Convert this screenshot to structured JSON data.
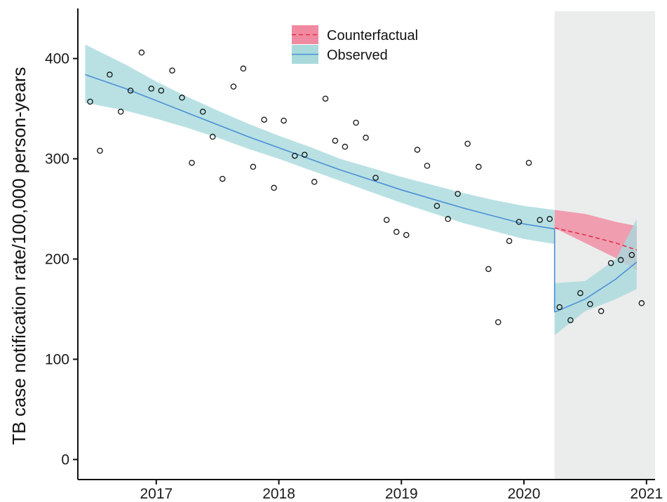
{
  "chart_data": {
    "type": "line",
    "title": "",
    "xlabel": "",
    "ylabel": "TB case notification rate/100,000 person-years",
    "xlim": [
      2016.36,
      2021.07
    ],
    "ylim": [
      -20,
      450
    ],
    "x_ticks": [
      2017,
      2018,
      2019,
      2020,
      2021
    ],
    "y_ticks": [
      0,
      100,
      200,
      300,
      400
    ],
    "grid": false,
    "legend": {
      "position": "top-center",
      "entries": [
        "Counterfactual",
        "Observed"
      ]
    },
    "shaded_period": {
      "start": 2020.25,
      "end": 2021.07,
      "color": "#ebecec"
    },
    "colors": {
      "observed_line": "#4a8fd6",
      "observed_band": "#a8dadc",
      "counterfactual_line": "#e0304f",
      "counterfactual_band": "#f08aa0",
      "points": "#111111"
    },
    "series": [
      {
        "name": "Observed",
        "kind": "fitted-line",
        "segments": [
          {
            "x": [
              2016.42,
              2016.75,
              2017.0,
              2017.25,
              2017.5,
              2017.75,
              2018.0,
              2018.25,
              2018.5,
              2018.75,
              2019.0,
              2019.25,
              2019.5,
              2019.75,
              2020.0,
              2020.25
            ],
            "y": [
              384,
              370,
              358,
              346,
              334,
              322,
              311,
              300,
              289,
              279,
              269,
              260,
              251,
              243,
              235,
              230
            ],
            "lower": [
              356,
              348,
              340,
              331,
              321,
              310,
              300,
              289,
              278,
              267,
              256,
              246,
              236,
              228,
              220,
              215
            ],
            "upper": [
              414,
              394,
              377,
              362,
              348,
              335,
              323,
              312,
              300,
              291,
              282,
              274,
              266,
              259,
              253,
              249
            ]
          },
          {
            "x": [
              2020.25,
              2020.5,
              2020.75,
              2020.92
            ],
            "y": [
              147,
              160,
              180,
              197
            ],
            "lower": [
              124,
              148,
              160,
              170
            ],
            "upper": [
              176,
              178,
              200,
              240
            ]
          }
        ],
        "connector": {
          "x": 2020.25,
          "y_from": 230,
          "y_to": 147
        }
      },
      {
        "name": "Counterfactual",
        "kind": "dashed-line",
        "x": [
          2020.25,
          2020.5,
          2020.75,
          2020.92
        ],
        "y": [
          231,
          224,
          216,
          209
        ],
        "lower": [
          231,
          216,
          201,
          189
        ],
        "upper": [
          249,
          245,
          237,
          233
        ]
      },
      {
        "name": "Observed data points",
        "kind": "scatter",
        "x": [
          2016.46,
          2016.54,
          2016.62,
          2016.71,
          2016.79,
          2016.88,
          2016.96,
          2017.04,
          2017.13,
          2017.21,
          2017.29,
          2017.38,
          2017.46,
          2017.54,
          2017.63,
          2017.71,
          2017.79,
          2017.88,
          2017.96,
          2018.04,
          2018.13,
          2018.21,
          2018.29,
          2018.38,
          2018.46,
          2018.54,
          2018.63,
          2018.71,
          2018.79,
          2018.88,
          2018.96,
          2019.04,
          2019.13,
          2019.21,
          2019.29,
          2019.38,
          2019.46,
          2019.54,
          2019.63,
          2019.71,
          2019.79,
          2019.88,
          2019.96,
          2020.04,
          2020.13,
          2020.21,
          2020.29,
          2020.38,
          2020.46,
          2020.54,
          2020.63,
          2020.71,
          2020.79,
          2020.88,
          2020.96
        ],
        "y": [
          357,
          308,
          384,
          347,
          368,
          406,
          370,
          368,
          388,
          361,
          296,
          347,
          322,
          280,
          372,
          390,
          292,
          339,
          271,
          338,
          303,
          304,
          277,
          360,
          318,
          312,
          336,
          321,
          281,
          239,
          227,
          224,
          309,
          293,
          253,
          240,
          265,
          315,
          292,
          190,
          137,
          218,
          237,
          296,
          239,
          240,
          152,
          139,
          166,
          155,
          148,
          196,
          199,
          204,
          156
        ]
      }
    ]
  }
}
